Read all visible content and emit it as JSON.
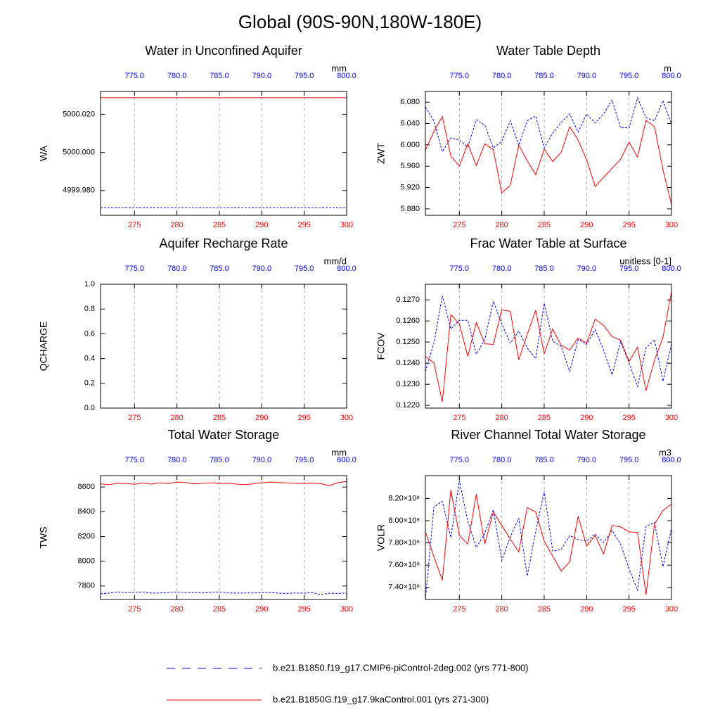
{
  "title": "Global (90S-90N,180W-180E)",
  "legend": [
    {
      "name": "b.e21.B1850.f19_g17.CMIP6-piControl-2deg.002 (yrs 771-800)",
      "color": "#0000ff",
      "dash": true
    },
    {
      "name": "b.e21.B1850G.f19_g17.9kaControl.001 (yrs 271-300)",
      "color": "#ff0000",
      "dash": false
    }
  ],
  "chart_data": [
    {
      "type": "line",
      "title": "Water in Unconfined Aquifer",
      "ylabel": "WA",
      "units": "mm",
      "x": [
        271,
        272,
        273,
        274,
        275,
        276,
        277,
        278,
        279,
        280,
        281,
        282,
        283,
        284,
        285,
        286,
        287,
        288,
        289,
        290,
        291,
        292,
        293,
        294,
        295,
        296,
        297,
        298,
        299,
        300
      ],
      "x2": [
        771,
        772,
        773,
        774,
        775,
        776,
        777,
        778,
        779,
        780,
        781,
        782,
        783,
        784,
        785,
        786,
        787,
        788,
        789,
        790,
        791,
        792,
        793,
        794,
        795,
        796,
        797,
        798,
        799,
        800
      ],
      "xlim": [
        271,
        300
      ],
      "xticks": [
        275,
        280,
        285,
        290,
        295,
        300
      ],
      "x2lim": [
        771,
        800
      ],
      "x2ticks": [
        {
          "value": 775,
          "label": "775.0"
        },
        {
          "value": 780,
          "label": "780.0"
        },
        {
          "value": 785,
          "label": "785.0"
        },
        {
          "value": 790,
          "label": "790.0"
        },
        {
          "value": 795,
          "label": "795.0"
        },
        {
          "value": 800,
          "label": "800.0"
        }
      ],
      "ylim": [
        4999.967,
        5000.032
      ],
      "yticks": [
        {
          "value": 4999.98,
          "label": "4999.980"
        },
        {
          "value": 5000.0,
          "label": "5000.000"
        },
        {
          "value": 5000.02,
          "label": "5000.020"
        }
      ],
      "grid": true,
      "series": [
        {
          "color": "#0000ff",
          "dash": true,
          "axis": "x2",
          "values": [
            4999.971,
            4999.971,
            4999.971,
            4999.971,
            4999.971,
            4999.971,
            4999.971,
            4999.971,
            4999.971,
            4999.971,
            4999.971,
            4999.971,
            4999.971,
            4999.971,
            4999.971,
            4999.971,
            4999.971,
            4999.971,
            4999.971,
            4999.971,
            4999.971,
            4999.971,
            4999.971,
            4999.971,
            4999.971,
            4999.971,
            4999.971,
            4999.971,
            4999.971,
            4999.971
          ]
        },
        {
          "color": "#ff0000",
          "dash": false,
          "axis": "x",
          "values": [
            5000.0287,
            5000.0287,
            5000.0287,
            5000.0287,
            5000.0287,
            5000.0287,
            5000.0287,
            5000.0287,
            5000.0287,
            5000.0287,
            5000.0287,
            5000.0287,
            5000.0287,
            5000.0287,
            5000.0287,
            5000.0287,
            5000.0287,
            5000.0287,
            5000.0287,
            5000.0287,
            5000.0287,
            5000.0287,
            5000.0287,
            5000.0287,
            5000.0287,
            5000.0287,
            5000.0287,
            5000.0287,
            5000.0287,
            5000.0287
          ]
        }
      ]
    },
    {
      "type": "line",
      "title": "Water Table Depth",
      "ylabel": "ZWT",
      "units": "m",
      "x": [
        271,
        272,
        273,
        274,
        275,
        276,
        277,
        278,
        279,
        280,
        281,
        282,
        283,
        284,
        285,
        286,
        287,
        288,
        289,
        290,
        291,
        292,
        293,
        294,
        295,
        296,
        297,
        298,
        299,
        300
      ],
      "x2": [
        771,
        772,
        773,
        774,
        775,
        776,
        777,
        778,
        779,
        780,
        781,
        782,
        783,
        784,
        785,
        786,
        787,
        788,
        789,
        790,
        791,
        792,
        793,
        794,
        795,
        796,
        797,
        798,
        799,
        800
      ],
      "xlim": [
        271,
        300
      ],
      "xticks": [
        275,
        280,
        285,
        290,
        295,
        300
      ],
      "x2lim": [
        771,
        800
      ],
      "x2ticks": [
        {
          "value": 775,
          "label": "775.0"
        },
        {
          "value": 780,
          "label": "780.0"
        },
        {
          "value": 785,
          "label": "785.0"
        },
        {
          "value": 790,
          "label": "790.0"
        },
        {
          "value": 795,
          "label": "795.0"
        },
        {
          "value": 800,
          "label": "800.0"
        }
      ],
      "ylim": [
        5.868,
        6.1
      ],
      "yticks": [
        {
          "value": 5.88,
          "label": "5.880"
        },
        {
          "value": 5.92,
          "label": "5.920"
        },
        {
          "value": 5.96,
          "label": "5.960"
        },
        {
          "value": 6.0,
          "label": "6.000"
        },
        {
          "value": 6.04,
          "label": "6.040"
        },
        {
          "value": 6.08,
          "label": "6.080"
        }
      ],
      "grid": true,
      "series": [
        {
          "color": "#0000ff",
          "dash": true,
          "axis": "x2",
          "values": [
            6.071,
            6.045,
            5.987,
            6.013,
            6.009,
            5.996,
            6.047,
            6.037,
            5.994,
            6.007,
            6.045,
            5.999,
            6.045,
            6.054,
            5.994,
            6.022,
            6.042,
            6.058,
            6.024,
            6.058,
            6.041,
            6.058,
            6.084,
            6.032,
            6.032,
            6.088,
            6.051,
            6.045,
            6.083,
            6.038
          ]
        },
        {
          "color": "#ff0000",
          "dash": false,
          "axis": "x",
          "values": [
            5.99,
            6.025,
            6.053,
            5.979,
            5.96,
            6.002,
            5.961,
            6.002,
            5.991,
            5.91,
            5.924,
            6.0,
            5.97,
            5.944,
            5.992,
            5.969,
            5.986,
            6.034,
            6.009,
            5.972,
            5.922,
            5.939,
            5.956,
            5.973,
            6.005,
            5.977,
            6.046,
            6.034,
            5.953,
            5.888
          ]
        }
      ]
    },
    {
      "type": "line",
      "title": "Aquifer Recharge Rate",
      "ylabel": "QCHARGE",
      "units": "mm/d",
      "xlim": [
        271,
        300
      ],
      "xticks": [
        275,
        280,
        285,
        290,
        295,
        300
      ],
      "x2lim": [
        771,
        800
      ],
      "x2ticks": [
        {
          "value": 775,
          "label": "775.0"
        },
        {
          "value": 780,
          "label": "780.0"
        },
        {
          "value": 785,
          "label": "785.0"
        },
        {
          "value": 790,
          "label": "790.0"
        },
        {
          "value": 795,
          "label": "795.0"
        },
        {
          "value": 800,
          "label": "800.0"
        }
      ],
      "ylim": [
        0,
        1
      ],
      "yticks": [
        {
          "value": 0,
          "label": "0.0"
        },
        0.2,
        0.4,
        0.6,
        0.8,
        {
          "value": 1,
          "label": "1.0"
        }
      ],
      "grid": true
    },
    {
      "type": "line",
      "title": "Frac Water Table at Surface",
      "ylabel": "FCOV",
      "units": "unitless [0-1]",
      "x": [
        271,
        272,
        273,
        274,
        275,
        276,
        277,
        278,
        279,
        280,
        281,
        282,
        283,
        284,
        285,
        286,
        287,
        288,
        289,
        290,
        291,
        292,
        293,
        294,
        295,
        296,
        297,
        298,
        299,
        300
      ],
      "x2": [
        771,
        772,
        773,
        774,
        775,
        776,
        777,
        778,
        779,
        780,
        781,
        782,
        783,
        784,
        785,
        786,
        787,
        788,
        789,
        790,
        791,
        792,
        793,
        794,
        795,
        796,
        797,
        798,
        799,
        800
      ],
      "xlim": [
        271,
        300
      ],
      "xticks": [
        275,
        280,
        285,
        290,
        295,
        300
      ],
      "x2lim": [
        771,
        800
      ],
      "x2ticks": [
        {
          "value": 775,
          "label": "775.0"
        },
        {
          "value": 780,
          "label": "780.0"
        },
        {
          "value": 785,
          "label": "785.0"
        },
        {
          "value": 790,
          "label": "790.0"
        },
        {
          "value": 795,
          "label": "795.0"
        },
        {
          "value": 800,
          "label": "800.0"
        }
      ],
      "ylim": [
        0.12187,
        0.12774
      ],
      "yticks": [
        {
          "value": 0.122,
          "label": "0.1220"
        },
        {
          "value": 0.123,
          "label": "0.1230"
        },
        {
          "value": 0.124,
          "label": "0.1240"
        },
        {
          "value": 0.125,
          "label": "0.1250"
        },
        {
          "value": 0.126,
          "label": "0.1260"
        },
        {
          "value": 0.127,
          "label": "0.1270"
        }
      ],
      "grid": true,
      "series": [
        {
          "color": "#0000ff",
          "dash": true,
          "axis": "x2",
          "values": [
            0.12361,
            0.12495,
            0.1272,
            0.12562,
            0.12603,
            0.12603,
            0.12442,
            0.12512,
            0.12693,
            0.12586,
            0.12495,
            0.12552,
            0.12472,
            0.12421,
            0.12683,
            0.12505,
            0.12479,
            0.12361,
            0.12512,
            0.12489,
            0.12559,
            0.12462,
            0.12344,
            0.12502,
            0.12401,
            0.1229,
            0.12472,
            0.12512,
            0.12314,
            0.12492
          ]
        },
        {
          "color": "#ff0000",
          "dash": false,
          "axis": "x",
          "values": [
            0.12432,
            0.12401,
            0.12217,
            0.1263,
            0.12586,
            0.12432,
            0.12593,
            0.12492,
            0.12489,
            0.12653,
            0.12646,
            0.12415,
            0.12536,
            0.1265,
            0.12445,
            0.12562,
            0.12485,
            0.12462,
            0.12519,
            0.12495,
            0.12609,
            0.12579,
            0.12526,
            0.12509,
            0.12408,
            0.12475,
            0.1227,
            0.12415,
            0.12522,
            0.1274
          ]
        }
      ]
    },
    {
      "type": "line",
      "title": "Total Water Storage",
      "ylabel": "TWS",
      "units": "mm",
      "x": [
        271,
        272,
        273,
        274,
        275,
        276,
        277,
        278,
        279,
        280,
        281,
        282,
        283,
        284,
        285,
        286,
        287,
        288,
        289,
        290,
        291,
        292,
        293,
        294,
        295,
        296,
        297,
        298,
        299,
        300
      ],
      "x2": [
        771,
        772,
        773,
        774,
        775,
        776,
        777,
        778,
        779,
        780,
        781,
        782,
        783,
        784,
        785,
        786,
        787,
        788,
        789,
        790,
        791,
        792,
        793,
        794,
        795,
        796,
        797,
        798,
        799,
        800
      ],
      "xlim": [
        271,
        300
      ],
      "xticks": [
        275,
        280,
        285,
        290,
        295,
        300
      ],
      "x2lim": [
        771,
        800
      ],
      "x2ticks": [
        {
          "value": 775,
          "label": "775.0"
        },
        {
          "value": 780,
          "label": "780.0"
        },
        {
          "value": 785,
          "label": "785.0"
        },
        {
          "value": 790,
          "label": "790.0"
        },
        {
          "value": 795,
          "label": "795.0"
        },
        {
          "value": 800,
          "label": "800.0"
        }
      ],
      "ylim": [
        7691,
        8692
      ],
      "yticks": [
        7800,
        8000,
        8200,
        8400,
        8600
      ],
      "grid": true,
      "series": [
        {
          "color": "#0000ff",
          "dash": true,
          "axis": "x2",
          "values": [
            7738,
            7742,
            7752,
            7746,
            7748,
            7752,
            7742,
            7744,
            7746,
            7752,
            7746,
            7748,
            7744,
            7748,
            7752,
            7744,
            7742,
            7744,
            7744,
            7746,
            7746,
            7742,
            7740,
            7744,
            7742,
            7746,
            7730,
            7742,
            7740,
            7744
          ]
        },
        {
          "color": "#ff0000",
          "dash": false,
          "axis": "x",
          "values": [
            8625,
            8620,
            8630,
            8628,
            8622,
            8632,
            8624,
            8634,
            8628,
            8640,
            8636,
            8626,
            8630,
            8634,
            8628,
            8630,
            8624,
            8620,
            8626,
            8634,
            8640,
            8636,
            8632,
            8630,
            8628,
            8632,
            8626,
            8612,
            8636,
            8644
          ]
        }
      ]
    },
    {
      "type": "line",
      "title": "River Channel Total Water Storage",
      "ylabel": "VOLR",
      "units": "m3",
      "x": [
        271,
        272,
        273,
        274,
        275,
        276,
        277,
        278,
        279,
        280,
        281,
        282,
        283,
        284,
        285,
        286,
        287,
        288,
        289,
        290,
        291,
        292,
        293,
        294,
        295,
        296,
        297,
        298,
        299,
        300
      ],
      "x2": [
        771,
        772,
        773,
        774,
        775,
        776,
        777,
        778,
        779,
        780,
        781,
        782,
        783,
        784,
        785,
        786,
        787,
        788,
        789,
        790,
        791,
        792,
        793,
        794,
        795,
        796,
        797,
        798,
        799,
        800
      ],
      "xlim": [
        271,
        300
      ],
      "xticks": [
        275,
        280,
        285,
        290,
        295,
        300
      ],
      "x2lim": [
        771,
        800
      ],
      "x2ticks": [
        {
          "value": 775,
          "label": "775.0"
        },
        {
          "value": 780,
          "label": "780.0"
        },
        {
          "value": 785,
          "label": "785.0"
        },
        {
          "value": 790,
          "label": "790.0"
        },
        {
          "value": 795,
          "label": "795.0"
        },
        {
          "value": 800,
          "label": "800.0"
        }
      ],
      "ylim": [
        729100000,
        840500000
      ],
      "yticks": [
        {
          "value": 740000000,
          "label": "7.40×10⁸"
        },
        {
          "value": 760000000,
          "label": "7.60×10⁸"
        },
        {
          "value": 780000000,
          "label": "7.80×10⁸"
        },
        {
          "value": 800000000,
          "label": "8.00×10⁸"
        },
        {
          "value": 820000000,
          "label": "8.20×10⁸"
        }
      ],
      "grid": true,
      "series": [
        {
          "color": "#0000ff",
          "dash": true,
          "axis": "x2",
          "values": [
            729100000,
            812300000,
            817400000,
            784800000,
            836000000,
            799500000,
            775800000,
            788600000,
            809800000,
            764300000,
            785400000,
            802100000,
            750200000,
            789900000,
            826400000,
            772600000,
            773900000,
            786700000,
            782900000,
            781600000,
            788000000,
            780300000,
            791200000,
            779000000,
            756600000,
            737400000,
            795000000,
            798200000,
            758600000,
            793100000
          ]
        },
        {
          "color": "#ff0000",
          "dash": false,
          "axis": "x",
          "values": [
            789900000,
            767500000,
            746400000,
            827700000,
            786700000,
            779000000,
            823800000,
            779000000,
            807800000,
            795700000,
            783500000,
            772000000,
            811700000,
            807800000,
            781600000,
            768200000,
            754700000,
            763000000,
            804000000,
            777100000,
            786700000,
            770100000,
            795700000,
            794400000,
            789900000,
            789300000,
            733600000,
            797000000,
            809100000,
            814900000
          ]
        }
      ]
    }
  ]
}
